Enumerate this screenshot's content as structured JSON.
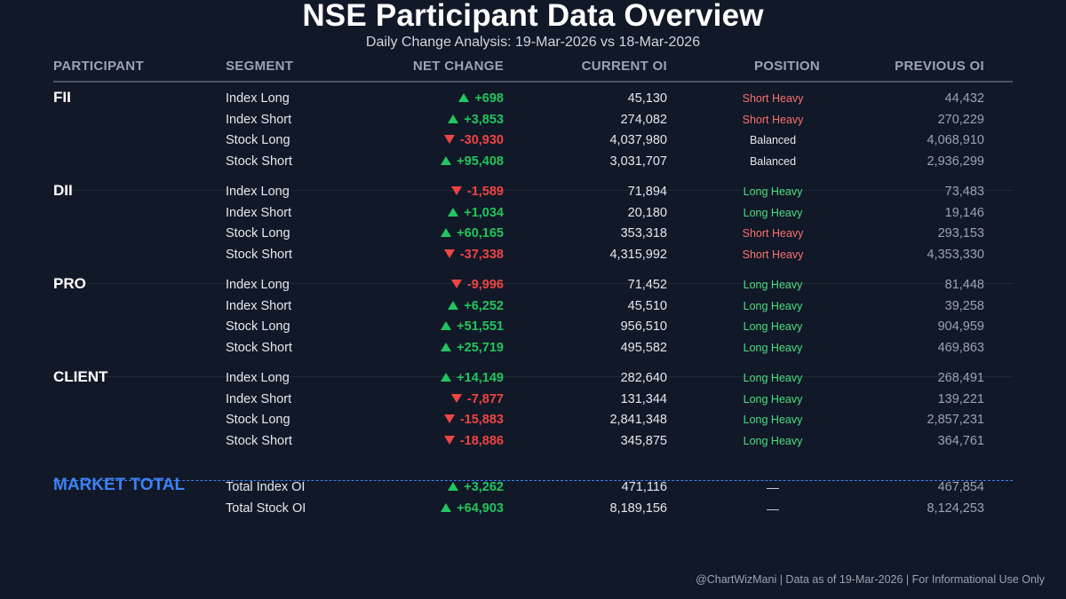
{
  "title": "NSE Participant Data Overview",
  "subtitle": "Daily Change Analysis: 19-Mar-2026 vs 18-Mar-2026",
  "columns": {
    "participant": "PARTICIPANT",
    "segment": "SEGMENT",
    "net_change": "NET CHANGE",
    "current_oi": "CURRENT OI",
    "position": "POSITION",
    "previous_oi": "PREVIOUS OI"
  },
  "groups": [
    {
      "name": "FII",
      "rows": [
        {
          "segment": "Index Long",
          "change": "+698",
          "dir": "up",
          "current": "45,130",
          "position": "Short Heavy",
          "pos_type": "short",
          "previous": "44,432"
        },
        {
          "segment": "Index Short",
          "change": "+3,853",
          "dir": "up",
          "current": "274,082",
          "position": "Short Heavy",
          "pos_type": "short",
          "previous": "270,229"
        },
        {
          "segment": "Stock Long",
          "change": "-30,930",
          "dir": "down",
          "current": "4,037,980",
          "position": "Balanced",
          "pos_type": "bal",
          "previous": "4,068,910"
        },
        {
          "segment": "Stock Short",
          "change": "+95,408",
          "dir": "up",
          "current": "3,031,707",
          "position": "Balanced",
          "pos_type": "bal",
          "previous": "2,936,299"
        }
      ]
    },
    {
      "name": "DII",
      "rows": [
        {
          "segment": "Index Long",
          "change": "-1,589",
          "dir": "down",
          "current": "71,894",
          "position": "Long Heavy",
          "pos_type": "long",
          "previous": "73,483"
        },
        {
          "segment": "Index Short",
          "change": "+1,034",
          "dir": "up",
          "current": "20,180",
          "position": "Long Heavy",
          "pos_type": "long",
          "previous": "19,146"
        },
        {
          "segment": "Stock Long",
          "change": "+60,165",
          "dir": "up",
          "current": "353,318",
          "position": "Short Heavy",
          "pos_type": "short",
          "previous": "293,153"
        },
        {
          "segment": "Stock Short",
          "change": "-37,338",
          "dir": "down",
          "current": "4,315,992",
          "position": "Short Heavy",
          "pos_type": "short",
          "previous": "4,353,330"
        }
      ]
    },
    {
      "name": "PRO",
      "rows": [
        {
          "segment": "Index Long",
          "change": "-9,996",
          "dir": "down",
          "current": "71,452",
          "position": "Long Heavy",
          "pos_type": "long",
          "previous": "81,448"
        },
        {
          "segment": "Index Short",
          "change": "+6,252",
          "dir": "up",
          "current": "45,510",
          "position": "Long Heavy",
          "pos_type": "long",
          "previous": "39,258"
        },
        {
          "segment": "Stock Long",
          "change": "+51,551",
          "dir": "up",
          "current": "956,510",
          "position": "Long Heavy",
          "pos_type": "long",
          "previous": "904,959"
        },
        {
          "segment": "Stock Short",
          "change": "+25,719",
          "dir": "up",
          "current": "495,582",
          "position": "Long Heavy",
          "pos_type": "long",
          "previous": "469,863"
        }
      ]
    },
    {
      "name": "CLIENT",
      "rows": [
        {
          "segment": "Index Long",
          "change": "+14,149",
          "dir": "up",
          "current": "282,640",
          "position": "Long Heavy",
          "pos_type": "long",
          "previous": "268,491"
        },
        {
          "segment": "Index Short",
          "change": "-7,877",
          "dir": "down",
          "current": "131,344",
          "position": "Long Heavy",
          "pos_type": "long",
          "previous": "139,221"
        },
        {
          "segment": "Stock Long",
          "change": "-15,883",
          "dir": "down",
          "current": "2,841,348",
          "position": "Long Heavy",
          "pos_type": "long",
          "previous": "2,857,231"
        },
        {
          "segment": "Stock Short",
          "change": "-18,886",
          "dir": "down",
          "current": "345,875",
          "position": "Long Heavy",
          "pos_type": "long",
          "previous": "364,761"
        }
      ]
    }
  ],
  "market_total": {
    "name": "MARKET TOTAL",
    "rows": [
      {
        "segment": "Total Index OI",
        "change": "+3,262",
        "dir": "up",
        "current": "471,116",
        "position": "—",
        "pos_type": "dash",
        "previous": "467,854"
      },
      {
        "segment": "Total Stock OI",
        "change": "+64,903",
        "dir": "up",
        "current": "8,189,156",
        "position": "—",
        "pos_type": "dash",
        "previous": "8,124,253"
      }
    ]
  },
  "footer": "@ChartWizMani | Data as of 19-Mar-2026 | For Informational Use Only",
  "colors": {
    "background": "#111827",
    "positive": "#22c55e",
    "negative": "#ef4444",
    "accent": "#3b82f6"
  }
}
